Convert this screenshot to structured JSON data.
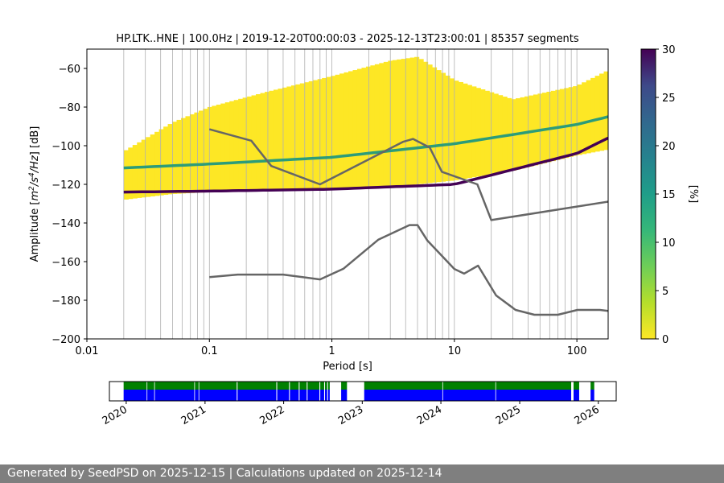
{
  "chart_data": [
    {
      "type": "heatmap",
      "title": "HP.LTK..HNE | 100.0Hz | 2019-12-20T00:00:03 - 2025-12-13T23:00:01 | 85357 segments",
      "xlabel": "Period [s]",
      "ylabel_parts": [
        "Amplitude [",
        "m",
        "2",
        "/",
        "s",
        "4",
        "/",
        "Hz",
        "] [dB]"
      ],
      "x_scale": "log",
      "xlim": [
        0.01,
        180
      ],
      "ylim": [
        -200,
        -50
      ],
      "x_ticks": [
        0.01,
        0.1,
        1,
        10,
        100
      ],
      "x_tick_labels": [
        "0.01",
        "0.1",
        "1",
        "10",
        "100"
      ],
      "y_ticks": [
        -200,
        -180,
        -160,
        -140,
        -120,
        -100,
        -80,
        -60
      ],
      "y_tick_labels": [
        "−200",
        "−180",
        "−160",
        "−140",
        "−120",
        "−100",
        "−80",
        "−60"
      ],
      "grid": "x-major-and-minor",
      "colorbar": {
        "label": "[%]",
        "range": [
          0,
          30
        ],
        "ticks": [
          0,
          5,
          10,
          15,
          20,
          25,
          30
        ],
        "tick_labels": [
          "0",
          "5",
          "10",
          "15",
          "20",
          "25",
          "30"
        ],
        "colormap": "viridis-reversed"
      },
      "psd_envelope_db": {
        "period_s": [
          0.02,
          0.05,
          0.1,
          0.3,
          1,
          3,
          5,
          10,
          30,
          100,
          180
        ],
        "lower": [
          -128,
          -125,
          -124,
          -123,
          -122,
          -121,
          -120,
          -118,
          -113,
          -105,
          -102
        ],
        "upper": [
          -103,
          -88,
          -80,
          -72,
          -64,
          -56,
          -54,
          -66,
          -76,
          -69,
          -61
        ]
      },
      "mode_lines_db": [
        {
          "name": "",
          "period_s": [
            0.02,
            0.1,
            1,
            10,
            100,
            180
          ],
          "values": [
            -124,
            -123.5,
            -122.5,
            -120,
            -104,
            -96
          ],
          "color": "#440154"
        },
        {
          "name": "",
          "period_s": [
            0.02,
            0.1,
            1,
            10,
            100,
            180
          ],
          "values": [
            -111.5,
            -109.5,
            -106,
            -99,
            -89,
            -85
          ],
          "color": "#2c9c79"
        }
      ],
      "noise_models": [
        {
          "name": "",
          "color": "#666666",
          "period_s": [
            0.1,
            0.22,
            0.32,
            0.8,
            3.8,
            4.6,
            6.3,
            7.9,
            15.4,
            20,
            354.8
          ],
          "values": [
            -91.5,
            -97.4,
            -110.5,
            -120,
            -98,
            -96.5,
            -101,
            -113.5,
            -120,
            -138.5,
            -126
          ]
        },
        {
          "name": "",
          "color": "#666666",
          "period_s": [
            0.1,
            0.17,
            0.4,
            0.8,
            1.24,
            2.4,
            4.3,
            5.0,
            6.0,
            10.0,
            12.0,
            15.6,
            21.9,
            31.6,
            45.0,
            70.0,
            101.0,
            154.0,
            328.0
          ],
          "values": [
            -168,
            -166.7,
            -166.7,
            -169.2,
            -163.7,
            -148.6,
            -141.1,
            -141.1,
            -149.0,
            -163.8,
            -166.2,
            -162.1,
            -177.5,
            -185.0,
            -187.5,
            -187.5,
            -185.0,
            -185.0,
            -187.5
          ]
        }
      ]
    },
    {
      "type": "timeline",
      "xlim": [
        "2019-10-15",
        "2026-03-25"
      ],
      "x_tick_labels": [
        "2020",
        "2021",
        "2022",
        "2023",
        "2024",
        "2025",
        "2026"
      ],
      "rows": [
        {
          "name": "",
          "color": "#008000"
        },
        {
          "name": "",
          "color": "#0000ff"
        }
      ],
      "coverage_intervals": [
        [
          "2019-12-20",
          "2020-04-05"
        ],
        [
          "2020-04-08",
          "2020-05-10"
        ],
        [
          "2020-05-13",
          "2020-11-12"
        ],
        [
          "2020-11-15",
          "2020-12-02"
        ],
        [
          "2020-12-05",
          "2021-05-28"
        ],
        [
          "2021-06-01",
          "2021-11-28"
        ],
        [
          "2021-12-02",
          "2022-01-26"
        ],
        [
          "2022-01-30",
          "2022-03-12"
        ],
        [
          "2022-03-16",
          "2022-04-18"
        ],
        [
          "2022-04-22",
          "2022-06-16"
        ],
        [
          "2022-06-20",
          "2022-07-08"
        ],
        [
          "2022-07-12",
          "2022-07-22"
        ],
        [
          "2022-07-26",
          "2022-08-03"
        ],
        [
          "2022-09-25",
          "2022-10-22"
        ],
        [
          "2023-01-10",
          "2024-01-08"
        ],
        [
          "2024-01-11",
          "2024-09-10"
        ],
        [
          "2024-09-13",
          "2025-08-28"
        ],
        [
          "2025-09-08",
          "2025-10-04"
        ],
        [
          "2025-11-26",
          "2025-12-13"
        ]
      ]
    }
  ],
  "footer": {
    "text": "Generated by SeedPSD on 2025-12-15 | Calculations updated on 2025-12-14"
  }
}
